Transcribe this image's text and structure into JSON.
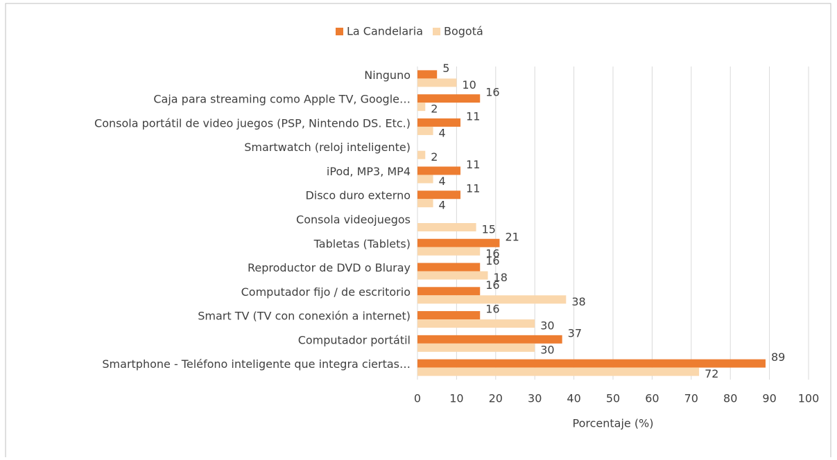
{
  "chart_data": {
    "type": "hbar",
    "categories": [
      "Ninguno",
      "Caja para streaming como Apple TV, Google…",
      "Consola portátil de video juegos (PSP, Nintendo DS. Etc.)",
      "Smartwatch (reloj inteligente)",
      "iPod, MP3, MP4",
      "Disco duro externo",
      "Consola videojuegos",
      "Tabletas (Tablets)",
      "Reproductor de DVD o Bluray",
      "Computador fijo / de escritorio",
      "Smart TV (TV con conexión a internet)",
      "Computador portátil",
      "Smartphone - Teléfono inteligente que integra ciertas…"
    ],
    "series": [
      {
        "name": "La Candelaria",
        "color": "#ed7d31",
        "values": [
          5,
          16,
          11,
          null,
          11,
          11,
          null,
          21,
          16,
          16,
          16,
          37,
          89
        ]
      },
      {
        "name": "Bogotá",
        "color": "#fad7ac",
        "values": [
          10,
          2,
          4,
          2,
          4,
          4,
          15,
          16,
          18,
          38,
          30,
          30,
          72
        ]
      }
    ],
    "x_label": "Porcentaje (%)",
    "xlim": [
      0,
      100
    ],
    "xticks": [
      0,
      10,
      20,
      30,
      40,
      50,
      60,
      70,
      80,
      90,
      100
    ],
    "grid": true,
    "legend": "top"
  }
}
